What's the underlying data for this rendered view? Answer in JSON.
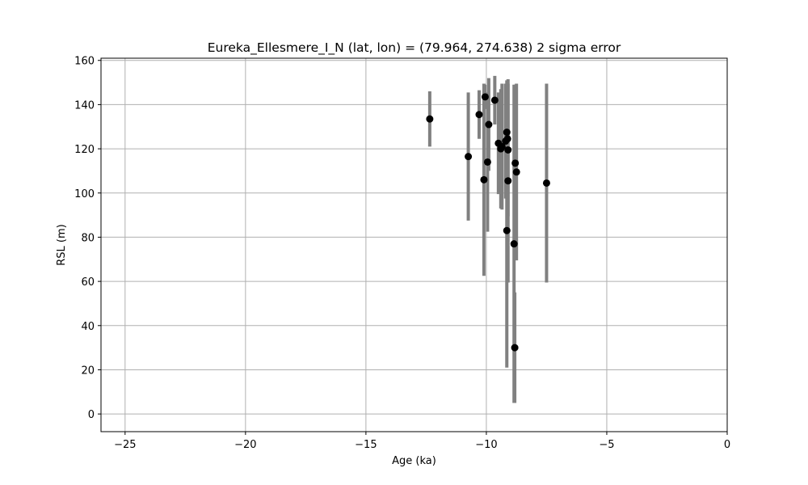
{
  "chart_data": {
    "type": "scatter",
    "title": "Eureka_Ellesmere_I_N (lat, lon) = (79.964, 274.638)  2 sigma error",
    "xlabel": "Age (ka)",
    "ylabel": "RSL (m)",
    "xlim": [
      -26,
      0
    ],
    "ylim": [
      -8,
      161
    ],
    "xticks": [
      -25,
      -20,
      -15,
      -10,
      -5,
      0
    ],
    "yticks": [
      0,
      20,
      40,
      60,
      80,
      100,
      120,
      140,
      160
    ],
    "grid": true,
    "colors": {
      "point": "#000000",
      "errorbar": "#808080",
      "grid": "#b0b0b0"
    },
    "points": [
      {
        "x": -12.35,
        "y": 133.5,
        "err": 12.5
      },
      {
        "x": -10.75,
        "y": 116.5,
        "err": 29
      },
      {
        "x": -10.3,
        "y": 135.5,
        "err": 11
      },
      {
        "x": -10.1,
        "y": 106,
        "err": 43.5
      },
      {
        "x": -10.05,
        "y": 143.5,
        "err": 5.5
      },
      {
        "x": -9.95,
        "y": 114,
        "err": 31.5
      },
      {
        "x": -9.9,
        "y": 131,
        "err": 21
      },
      {
        "x": -9.65,
        "y": 142,
        "err": 11
      },
      {
        "x": -9.5,
        "y": 122.5,
        "err": 23
      },
      {
        "x": -9.4,
        "y": 120,
        "err": 27
      },
      {
        "x": -9.35,
        "y": 121,
        "err": 28.5
      },
      {
        "x": -9.2,
        "y": 123.5,
        "err": 26
      },
      {
        "x": -9.15,
        "y": 127.5,
        "err": 23.5
      },
      {
        "x": -9.15,
        "y": 83,
        "err": 62
      },
      {
        "x": -9.12,
        "y": 124.5,
        "err": 25
      },
      {
        "x": -9.1,
        "y": 119.5,
        "err": 30
      },
      {
        "x": -9.1,
        "y": 105.5,
        "err": 46
      },
      {
        "x": -8.85,
        "y": 77,
        "err": 72
      },
      {
        "x": -8.82,
        "y": 30,
        "err": 25
      },
      {
        "x": -8.8,
        "y": 113.5,
        "err": 35.5
      },
      {
        "x": -8.75,
        "y": 109.5,
        "err": 40
      },
      {
        "x": -7.5,
        "y": 104.5,
        "err": 45
      }
    ]
  }
}
